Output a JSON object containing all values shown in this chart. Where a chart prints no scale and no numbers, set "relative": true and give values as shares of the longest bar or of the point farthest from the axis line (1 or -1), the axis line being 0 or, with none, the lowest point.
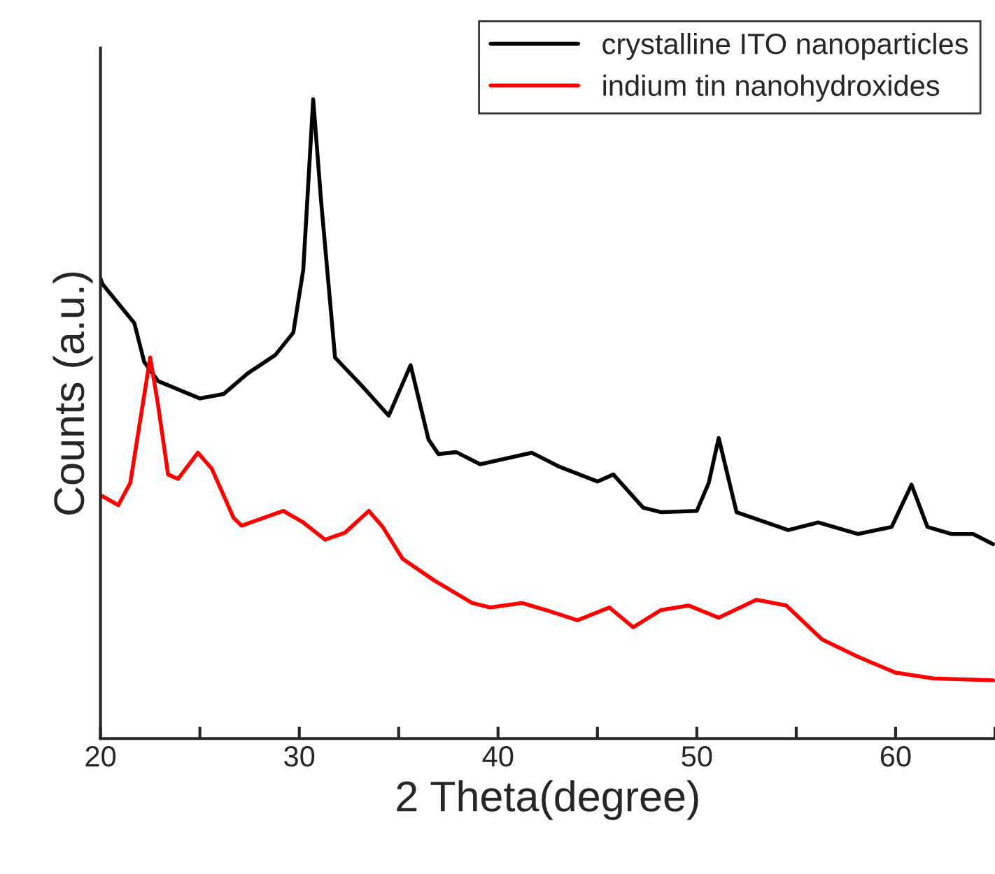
{
  "chart_data": {
    "type": "line",
    "relative": true,
    "xlabel": "2 Theta(degree)",
    "ylabel": "Counts (a.u.)",
    "xlim": [
      20,
      65
    ],
    "xticks": [
      20,
      {
        "value": 25,
        "label": null
      },
      30,
      {
        "value": 35,
        "label": null
      },
      40,
      {
        "value": 45,
        "label": null
      },
      50,
      {
        "value": 55,
        "label": null
      },
      60,
      {
        "value": 65,
        "label": null
      }
    ],
    "grid": false,
    "legend": "top right",
    "tick_labels": "x",
    "series": [
      {
        "name": "crystalline ITO nanoparticles",
        "color": "#000000",
        "x": [
          20.0,
          20.1,
          21.7,
          22.2,
          22.9,
          25.0,
          26.2,
          27.4,
          28.8,
          29.7,
          30.2,
          30.7,
          31.1,
          31.8,
          33.2,
          34.5,
          35.6,
          36.5,
          37.0,
          37.9,
          39.1,
          41.7,
          43.1,
          45.0,
          45.8,
          47.3,
          48.2,
          50.0,
          50.6,
          51.1,
          52.0,
          54.6,
          56.1,
          58.1,
          59.8,
          60.8,
          61.6,
          62.8,
          63.9,
          64.9
        ],
        "values": [
          0.719,
          0.711,
          0.65,
          0.589,
          0.559,
          0.532,
          0.539,
          0.571,
          0.6,
          0.635,
          0.733,
          1.0,
          0.84,
          0.596,
          0.55,
          0.505,
          0.584,
          0.468,
          0.445,
          0.448,
          0.429,
          0.447,
          0.425,
          0.402,
          0.413,
          0.361,
          0.354,
          0.356,
          0.4,
          0.47,
          0.354,
          0.326,
          0.338,
          0.32,
          0.331,
          0.397,
          0.331,
          0.32,
          0.32,
          0.304
        ]
      },
      {
        "name": "indium tin nanohydroxides",
        "color": "#ff0000",
        "x": [
          20.1,
          20.9,
          21.5,
          22.5,
          22.9,
          23.4,
          23.9,
          24.9,
          25.6,
          26.7,
          27.1,
          29.2,
          30.2,
          31.3,
          32.3,
          33.5,
          34.2,
          35.2,
          36.8,
          38.7,
          39.6,
          41.2,
          42.4,
          44.0,
          45.6,
          46.8,
          48.2,
          49.6,
          51.1,
          53.0,
          54.5,
          56.3,
          58.1,
          60.0,
          61.9,
          64.9
        ],
        "values": [
          0.379,
          0.365,
          0.4,
          0.596,
          0.521,
          0.413,
          0.406,
          0.447,
          0.422,
          0.345,
          0.333,
          0.356,
          0.338,
          0.311,
          0.322,
          0.356,
          0.331,
          0.281,
          0.247,
          0.212,
          0.205,
          0.212,
          0.201,
          0.185,
          0.205,
          0.174,
          0.201,
          0.208,
          0.189,
          0.217,
          0.208,
          0.155,
          0.128,
          0.103,
          0.094,
          0.091
        ]
      }
    ]
  }
}
